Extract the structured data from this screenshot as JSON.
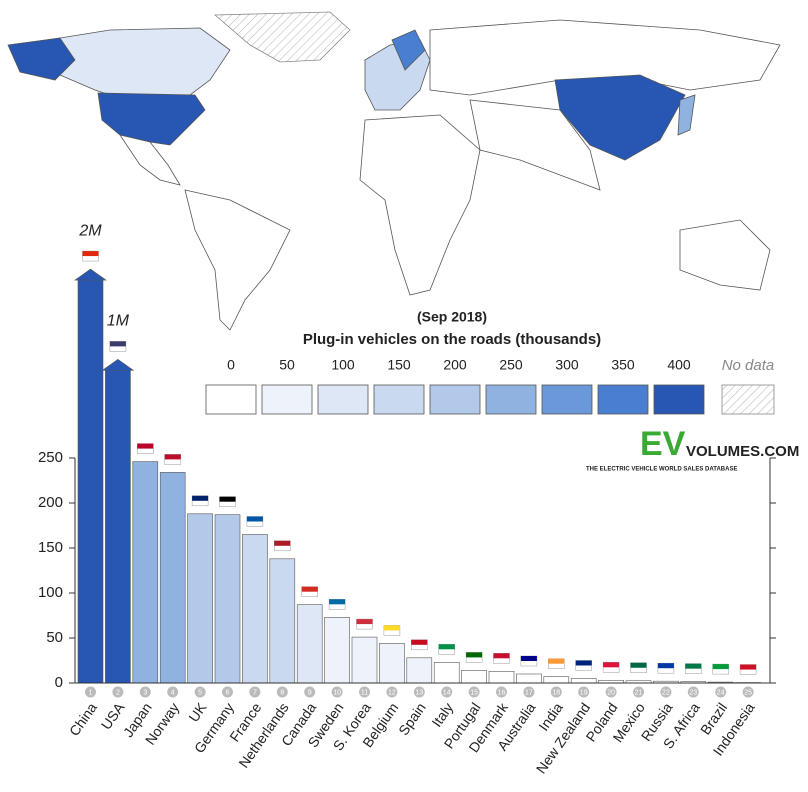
{
  "chart_data": {
    "type": "bar",
    "subtitle": "(Sep 2018)",
    "title": "Plug-in vehicles on the roads (thousands)",
    "categories": [
      "China",
      "USA",
      "Japan",
      "Norway",
      "UK",
      "Germany",
      "France",
      "Netherlands",
      "Canada",
      "Sweden",
      "S. Korea",
      "Belgium",
      "Spain",
      "Italy",
      "Portugal",
      "Denmark",
      "Australia",
      "India",
      "New Zealand",
      "Poland",
      "Mexico",
      "Russia",
      "S. Africa",
      "Brazil",
      "Indonesia"
    ],
    "ranks": [
      1,
      2,
      3,
      4,
      5,
      6,
      7,
      8,
      9,
      10,
      11,
      12,
      13,
      14,
      15,
      16,
      17,
      18,
      19,
      20,
      21,
      22,
      23,
      24,
      25
    ],
    "values": [
      2000,
      1000,
      246,
      234,
      188,
      187,
      165,
      138,
      87,
      73,
      51,
      44,
      28,
      23,
      14,
      13,
      10,
      7,
      5,
      3,
      2.5,
      2,
      1.5,
      1,
      0.5
    ],
    "value_labels": [
      "2M",
      "1M",
      null,
      null,
      null,
      null,
      null,
      null,
      null,
      null,
      null,
      null,
      null,
      null,
      null,
      null,
      null,
      null,
      null,
      null,
      null,
      null,
      null,
      null,
      null
    ],
    "ylim": [
      0,
      250
    ],
    "yticks": [
      0,
      50,
      100,
      150,
      200,
      250
    ],
    "legend": {
      "ticks": [
        0,
        50,
        100,
        150,
        200,
        250,
        300,
        350,
        400
      ],
      "colors": [
        "#ffffff",
        "#eef3fb",
        "#dde7f6",
        "#c9d9f0",
        "#b3c9ea",
        "#8fb2e1",
        "#6b98d8",
        "#4a7ed0",
        "#2756b3"
      ],
      "no_data_label": "No data"
    },
    "logo": {
      "ev": "EV",
      "site": "VOLUMES.COM",
      "tagline": "THE ELECTRIC VEHICLE WORLD SALES DATABASE"
    }
  }
}
